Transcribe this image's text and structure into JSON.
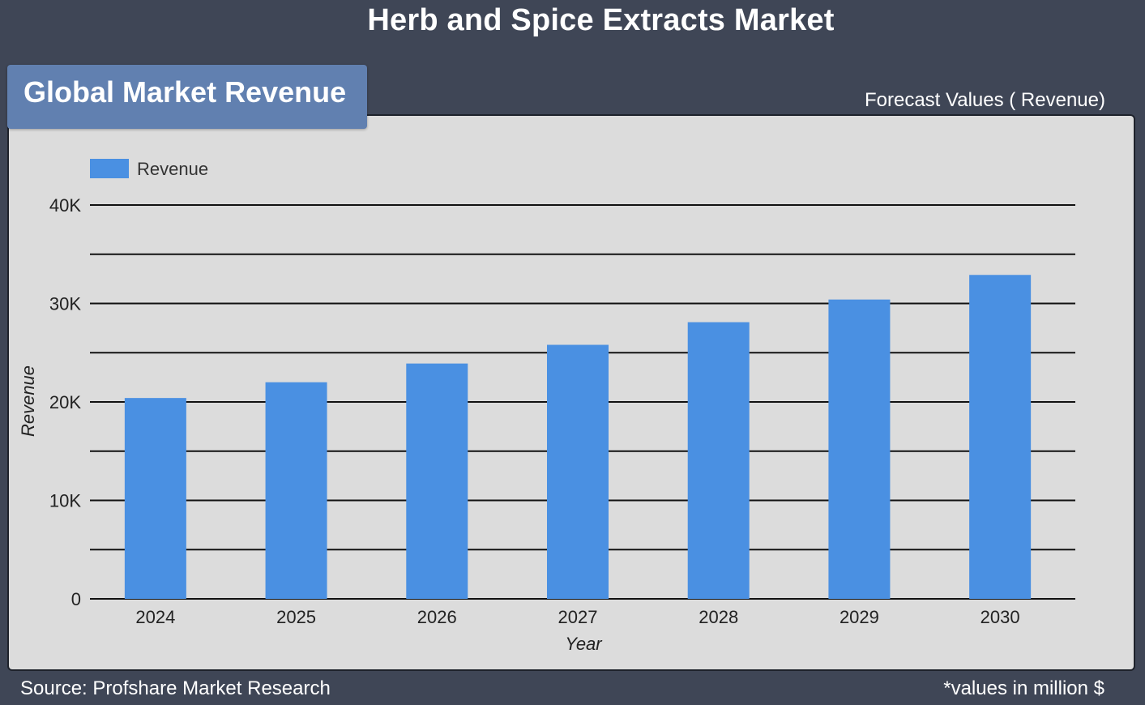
{
  "header": {
    "title": "Herb and Spice Extracts Market",
    "section_tab": "Global Market Revenue",
    "forecast_label": "Forecast Values ( Revenue)"
  },
  "footer": {
    "source": "Source: Profshare Market Research",
    "unit_note": "*values in million $"
  },
  "colors": {
    "background": "#3f4656",
    "panel": "#dcdcdc",
    "tab": "#6180b0",
    "bar": "#4a90e2"
  },
  "chart_data": {
    "type": "bar",
    "categories": [
      "2024",
      "2025",
      "2026",
      "2027",
      "2028",
      "2029",
      "2030"
    ],
    "series": [
      {
        "name": "Revenue",
        "values": [
          20400,
          22000,
          23900,
          25800,
          28100,
          30400,
          32900
        ]
      }
    ],
    "xlabel": "Year",
    "ylabel": "Revenue",
    "ylim": [
      0,
      40000
    ],
    "yticks": [
      0,
      10000,
      20000,
      30000,
      40000
    ],
    "ytick_labels": [
      "0",
      "10K",
      "20K",
      "30K",
      "40K"
    ],
    "grid": true,
    "legend_position": "top-left"
  }
}
